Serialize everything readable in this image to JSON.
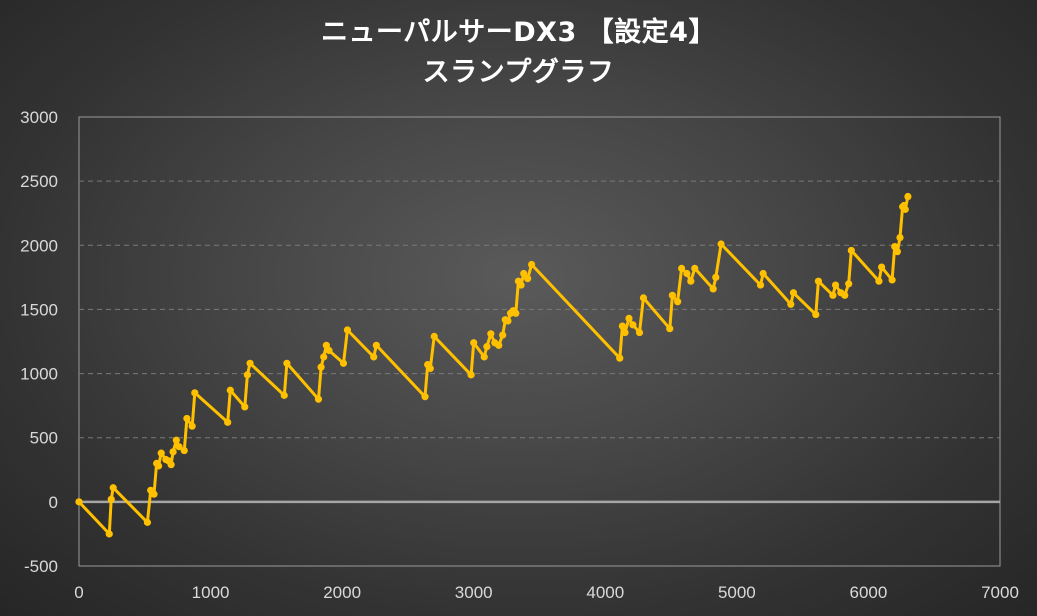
{
  "chart_data": {
    "type": "line",
    "title": "ニューパルサーDX3 【設定4】",
    "subtitle": "スランプグラフ",
    "xlabel": "",
    "ylabel": "",
    "xlim": [
      0,
      7000
    ],
    "ylim": [
      -500,
      3000
    ],
    "xticks": [
      0,
      1000,
      2000,
      3000,
      4000,
      5000,
      6000,
      7000
    ],
    "yticks": [
      -500,
      0,
      500,
      1000,
      1500,
      2000,
      2500,
      3000
    ],
    "x_tick_labels": [
      "0",
      "1000",
      "2000",
      "3000",
      "4000",
      "5000",
      "6000",
      "7000"
    ],
    "y_tick_labels": [
      "-500",
      "0",
      "500",
      "1000",
      "1500",
      "2000",
      "2500",
      "3000"
    ],
    "grid": "horizontal dashed",
    "legend": "none",
    "series": [
      {
        "color": "#ffc000",
        "points": [
          [
            0,
            0
          ],
          [
            230,
            -250
          ],
          [
            245,
            20
          ],
          [
            260,
            110
          ],
          [
            520,
            -160
          ],
          [
            545,
            90
          ],
          [
            570,
            60
          ],
          [
            590,
            300
          ],
          [
            605,
            280
          ],
          [
            625,
            380
          ],
          [
            660,
            330
          ],
          [
            680,
            320
          ],
          [
            700,
            290
          ],
          [
            715,
            390
          ],
          [
            740,
            480
          ],
          [
            760,
            430
          ],
          [
            800,
            400
          ],
          [
            820,
            650
          ],
          [
            860,
            590
          ],
          [
            880,
            850
          ],
          [
            1130,
            620
          ],
          [
            1150,
            870
          ],
          [
            1260,
            740
          ],
          [
            1280,
            990
          ],
          [
            1300,
            1080
          ],
          [
            1560,
            830
          ],
          [
            1580,
            1080
          ],
          [
            1820,
            800
          ],
          [
            1840,
            1050
          ],
          [
            1860,
            1130
          ],
          [
            1880,
            1220
          ],
          [
            1900,
            1180
          ],
          [
            2010,
            1080
          ],
          [
            2040,
            1340
          ],
          [
            2240,
            1130
          ],
          [
            2260,
            1220
          ],
          [
            2630,
            820
          ],
          [
            2650,
            1070
          ],
          [
            2670,
            1040
          ],
          [
            2700,
            1290
          ],
          [
            2980,
            990
          ],
          [
            3000,
            1240
          ],
          [
            3080,
            1130
          ],
          [
            3100,
            1210
          ],
          [
            3130,
            1310
          ],
          [
            3160,
            1240
          ],
          [
            3190,
            1220
          ],
          [
            3220,
            1300
          ],
          [
            3240,
            1420
          ],
          [
            3260,
            1410
          ],
          [
            3280,
            1470
          ],
          [
            3300,
            1490
          ],
          [
            3320,
            1470
          ],
          [
            3340,
            1720
          ],
          [
            3360,
            1690
          ],
          [
            3380,
            1780
          ],
          [
            3410,
            1740
          ],
          [
            3440,
            1850
          ],
          [
            4110,
            1120
          ],
          [
            4130,
            1370
          ],
          [
            4150,
            1320
          ],
          [
            4180,
            1430
          ],
          [
            4210,
            1380
          ],
          [
            4260,
            1320
          ],
          [
            4290,
            1590
          ],
          [
            4490,
            1350
          ],
          [
            4510,
            1610
          ],
          [
            4550,
            1560
          ],
          [
            4580,
            1820
          ],
          [
            4620,
            1780
          ],
          [
            4650,
            1720
          ],
          [
            4680,
            1820
          ],
          [
            4820,
            1660
          ],
          [
            4840,
            1750
          ],
          [
            4880,
            2010
          ],
          [
            5180,
            1690
          ],
          [
            5200,
            1780
          ],
          [
            5410,
            1540
          ],
          [
            5430,
            1630
          ],
          [
            5600,
            1460
          ],
          [
            5620,
            1720
          ],
          [
            5730,
            1610
          ],
          [
            5750,
            1690
          ],
          [
            5790,
            1630
          ],
          [
            5820,
            1610
          ],
          [
            5850,
            1700
          ],
          [
            5870,
            1960
          ],
          [
            6080,
            1720
          ],
          [
            6100,
            1830
          ],
          [
            6180,
            1730
          ],
          [
            6200,
            1990
          ],
          [
            6220,
            1950
          ],
          [
            6240,
            2060
          ],
          [
            6260,
            2300
          ],
          [
            6270,
            2310
          ],
          [
            6280,
            2280
          ],
          [
            6300,
            2380
          ]
        ]
      }
    ]
  }
}
